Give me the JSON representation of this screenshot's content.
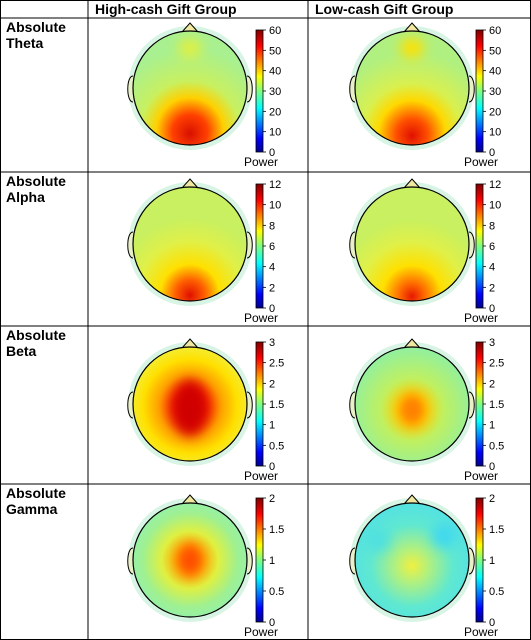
{
  "header": {
    "col1": "High-cash Gift Group",
    "col2": "Low-cash Gift Group"
  },
  "rows": [
    {
      "label_line1": "Absolute",
      "label_line2": "Theta",
      "colorbar": {
        "ticks": [
          "60",
          "50",
          "40",
          "30",
          "20",
          "10",
          "0"
        ],
        "label": "Power"
      }
    },
    {
      "label_line1": "Absolute",
      "label_line2": "Alpha",
      "colorbar": {
        "ticks": [
          "12",
          "10",
          "8",
          "6",
          "4",
          "2",
          "0"
        ],
        "label": "Power"
      }
    },
    {
      "label_line1": "Absolute",
      "label_line2": "Beta",
      "colorbar": {
        "ticks": [
          "3",
          "2.5",
          "2",
          "1.5",
          "1",
          "0.5",
          "0"
        ],
        "label": "Power"
      }
    },
    {
      "label_line1": "Absolute",
      "label_line2": "Gamma",
      "colorbar": {
        "ticks": [
          "2",
          "1.5",
          "1",
          "0.5",
          "0"
        ],
        "label": "Power"
      }
    }
  ],
  "colormap": [
    "#00008f",
    "#0000ff",
    "#0080ff",
    "#00ffff",
    "#80ff80",
    "#ffff00",
    "#ff8000",
    "#ff0000",
    "#800000"
  ]
}
